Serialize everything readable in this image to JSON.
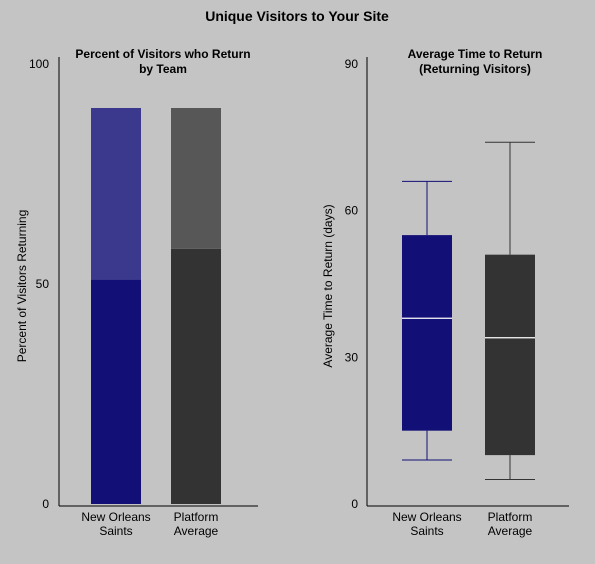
{
  "title": "Unique Visitors to Your Site",
  "colors": {
    "background": "#c4c4c4",
    "team_dark": "#120f76",
    "team_light": "#3b398d",
    "platform_dark": "#333333",
    "platform_light": "#575757",
    "median_line": "#ffffff",
    "axis": "#000000"
  },
  "chart_data": [
    {
      "type": "bar",
      "title": "Percent of Visitors who Return by Team",
      "title_lines": [
        "Percent of Visitors who Return",
        "by Team"
      ],
      "ylabel": "Percent of Visitors Returning",
      "xlabel": "",
      "ylim": [
        0,
        100
      ],
      "yticks": [
        0,
        50,
        100
      ],
      "categories": [
        {
          "lines": [
            "New Orleans",
            "Saints"
          ]
        },
        {
          "lines": [
            "Platform",
            "Average"
          ]
        }
      ],
      "series": [
        {
          "values": [
            51,
            58
          ]
        },
        {
          "values": [
            39,
            32
          ]
        }
      ],
      "stacked": true,
      "grid": false,
      "legend": "none"
    },
    {
      "type": "box",
      "title": "Average Time to Return (Returning Visitors)",
      "title_lines": [
        "Average Time to Return",
        "(Returning Visitors)"
      ],
      "ylabel": "Average Time to Return (days)",
      "xlabel": "",
      "ylim": [
        0,
        90
      ],
      "yticks": [
        0,
        30,
        60,
        90
      ],
      "categories": [
        {
          "lines": [
            "New Orleans",
            "Saints"
          ]
        },
        {
          "lines": [
            "Platform",
            "Average"
          ]
        }
      ],
      "boxes": [
        {
          "min": 9,
          "q1": 15,
          "median": 38,
          "q3": 55,
          "max": 66
        },
        {
          "min": 5,
          "q1": 10,
          "median": 34,
          "q3": 51,
          "max": 74
        }
      ],
      "grid": false,
      "legend": "none"
    }
  ]
}
